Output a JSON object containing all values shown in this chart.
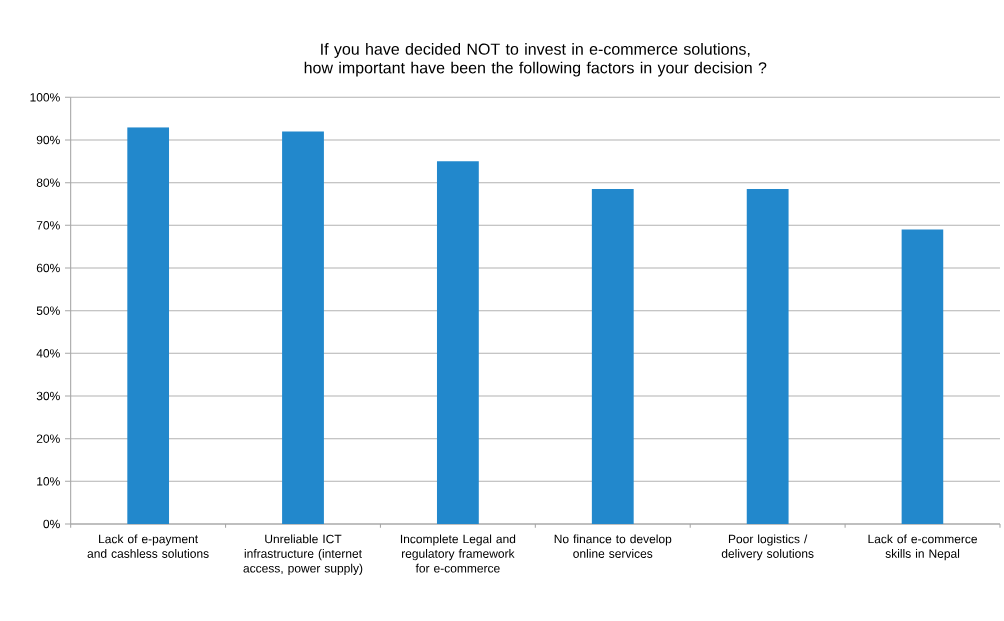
{
  "chart_data": {
    "type": "bar",
    "title": "If you have decided NOT to invest in e-commerce solutions, how important have been the following factors in your decision ?",
    "categories": [
      "Lack of e-payment and cashless solutions",
      "Unreliable ICT infrastructure (internet access, power supply)",
      "Incomplete Legal and regulatory framework for e-commerce",
      "No finance to develop online services",
      "Poor logistics / delivery solutions",
      "Lack of e-commerce skills in Nepal"
    ],
    "values": [
      93,
      92,
      85,
      78.5,
      78.5,
      69
    ],
    "color": "#2288cc",
    "ylim": [
      0,
      100
    ],
    "yticks": [
      {
        "value": 0,
        "label": "0%"
      },
      {
        "value": 10,
        "label": "10%"
      },
      {
        "value": 20,
        "label": "20%"
      },
      {
        "value": 30,
        "label": "30%"
      },
      {
        "value": 40,
        "label": "40%"
      },
      {
        "value": 50,
        "label": "50%"
      },
      {
        "value": 60,
        "label": "60%"
      },
      {
        "value": 70,
        "label": "70%"
      },
      {
        "value": 80,
        "label": "80%"
      },
      {
        "value": 90,
        "label": "90%"
      },
      {
        "value": 100,
        "label": "100%"
      }
    ],
    "grid": "y"
  }
}
